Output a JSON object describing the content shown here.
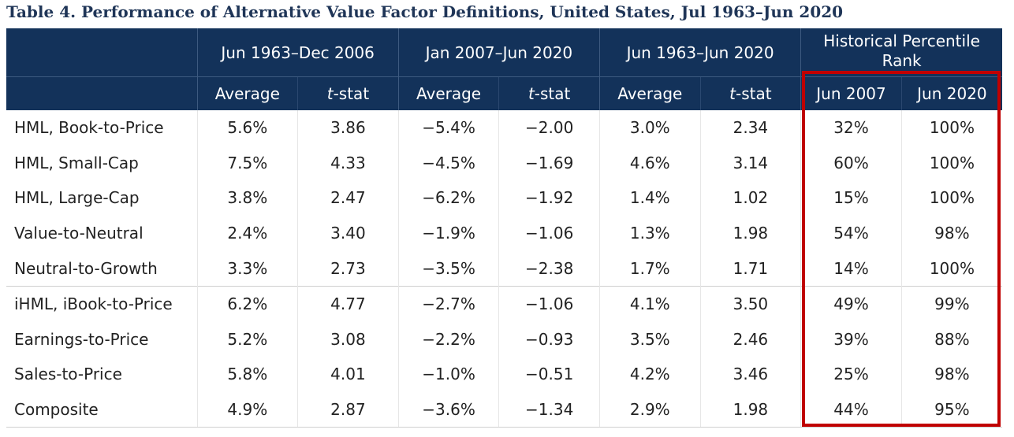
{
  "title": "Table 4. Performance of Alternative Value Factor Definitions, United States, Jul 1963–Jun 2020",
  "header": {
    "groups": [
      "Jun 1963–Dec 2006",
      "Jan 2007–Jun 2020",
      "Jun 1963–Jun 2020",
      "Historical Percentile Rank"
    ],
    "sub": {
      "average": "Average",
      "tstat_t": "t",
      "tstat_rest": "-stat",
      "jun2007": "Jun 2007",
      "jun2020": "Jun 2020"
    }
  },
  "rows": [
    {
      "label": "HML, Book-to-Price",
      "v": [
        "5.6%",
        "3.86",
        "−5.4%",
        "−2.00",
        "3.0%",
        "2.34",
        "32%",
        "100%"
      ]
    },
    {
      "label": "HML, Small-Cap",
      "v": [
        "7.5%",
        "4.33",
        "−4.5%",
        "−1.69",
        "4.6%",
        "3.14",
        "60%",
        "100%"
      ]
    },
    {
      "label": "HML, Large-Cap",
      "v": [
        "3.8%",
        "2.47",
        "−6.2%",
        "−1.92",
        "1.4%",
        "1.02",
        "15%",
        "100%"
      ]
    },
    {
      "label": "Value-to-Neutral",
      "v": [
        "2.4%",
        "3.40",
        "−1.9%",
        "−1.06",
        "1.3%",
        "1.98",
        "54%",
        "98%"
      ]
    },
    {
      "label": "Neutral-to-Growth",
      "v": [
        "3.3%",
        "2.73",
        "−3.5%",
        "−2.38",
        "1.7%",
        "1.71",
        "14%",
        "100%"
      ]
    },
    {
      "label": "iHML, iBook-to-Price",
      "v": [
        "6.2%",
        "4.77",
        "−2.7%",
        "−1.06",
        "4.1%",
        "3.50",
        "49%",
        "99%"
      ]
    },
    {
      "label": "Earnings-to-Price",
      "v": [
        "5.2%",
        "3.08",
        "−2.2%",
        "−0.93",
        "3.5%",
        "2.46",
        "39%",
        "88%"
      ]
    },
    {
      "label": "Sales-to-Price",
      "v": [
        "5.8%",
        "4.01",
        "−1.0%",
        "−0.51",
        "4.2%",
        "3.46",
        "25%",
        "98%"
      ]
    },
    {
      "label": "Composite",
      "v": [
        "4.9%",
        "2.87",
        "−3.6%",
        "−1.34",
        "2.9%",
        "1.98",
        "44%",
        "95%"
      ]
    }
  ],
  "highlight_color": "#c00000"
}
